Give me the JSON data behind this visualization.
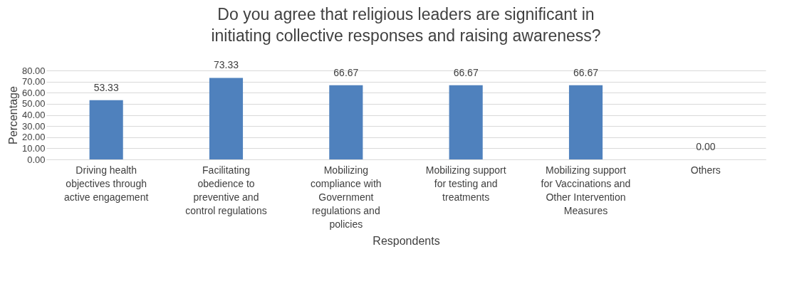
{
  "chart_data": {
    "type": "bar",
    "title": "Do you agree that religious leaders are significant in initiating collective responses and raising awareness?",
    "xlabel": "Respondents",
    "ylabel": "Percentage",
    "categories": [
      "Driving health objectives through active engagement",
      "Facilitating obedience to preventive and control regulations",
      "Mobilizing compliance with Government regulations and policies",
      "Mobilizing support for testing and treatments",
      "Mobilizing support for Vaccinations and Other Intervention Measures",
      "Others"
    ],
    "values": [
      53.33,
      73.33,
      66.67,
      66.67,
      66.67,
      0.0
    ],
    "color": "#4f81bd",
    "ylim": [
      0,
      80
    ],
    "yticks": [
      {
        "value": 0,
        "label": "0.00"
      },
      {
        "value": 10,
        "label": "10.00"
      },
      {
        "value": 20,
        "label": "20.00"
      },
      {
        "value": 30,
        "label": "30.00"
      },
      {
        "value": 40,
        "label": "40.00"
      },
      {
        "value": 50,
        "label": "50.00"
      },
      {
        "value": 60,
        "label": "60.00"
      },
      {
        "value": 70,
        "label": "70.00"
      },
      {
        "value": 80,
        "label": "80.00"
      }
    ],
    "grid": "y",
    "value_labels": [
      "53.33",
      "73.33",
      "66.67",
      "66.67",
      "66.67",
      "0.00"
    ]
  }
}
